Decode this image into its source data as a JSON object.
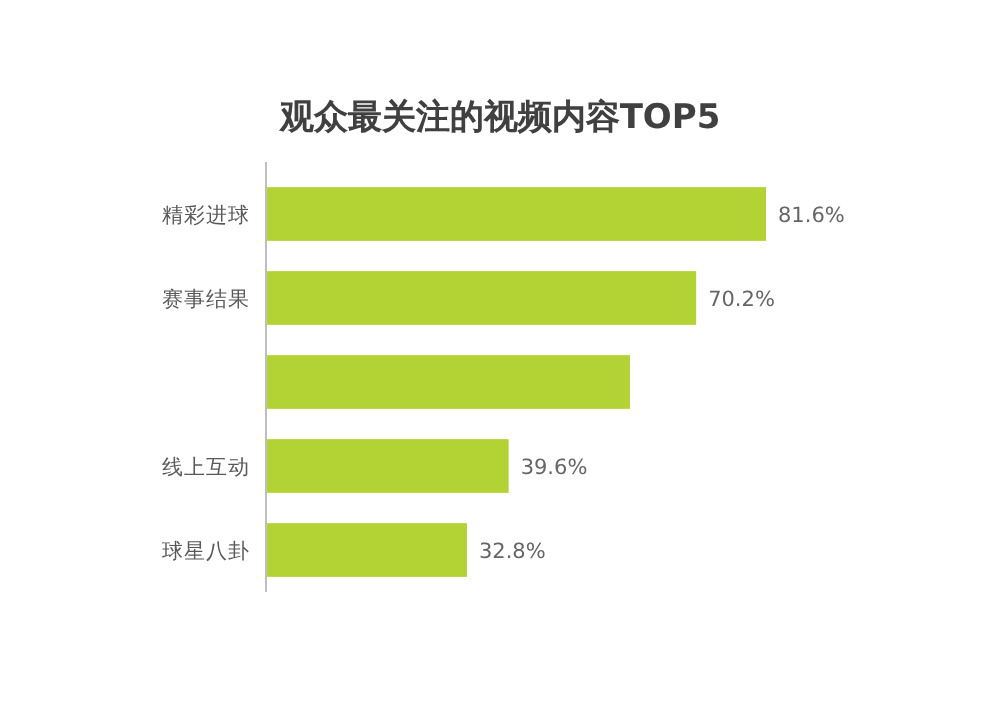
{
  "chart_data": {
    "type": "bar",
    "orientation": "horizontal",
    "title": "观众最关注的视频内容TOP5",
    "categories": [
      "精彩进球",
      "赛事结果",
      null,
      "线上互动",
      "球星八卦"
    ],
    "values": [
      81.6,
      70.2,
      59.4,
      39.6,
      32.8
    ],
    "value_labels": [
      "81.6%",
      "70.2%",
      null,
      "39.6%",
      "32.8%"
    ],
    "color": "#b3d334"
  }
}
